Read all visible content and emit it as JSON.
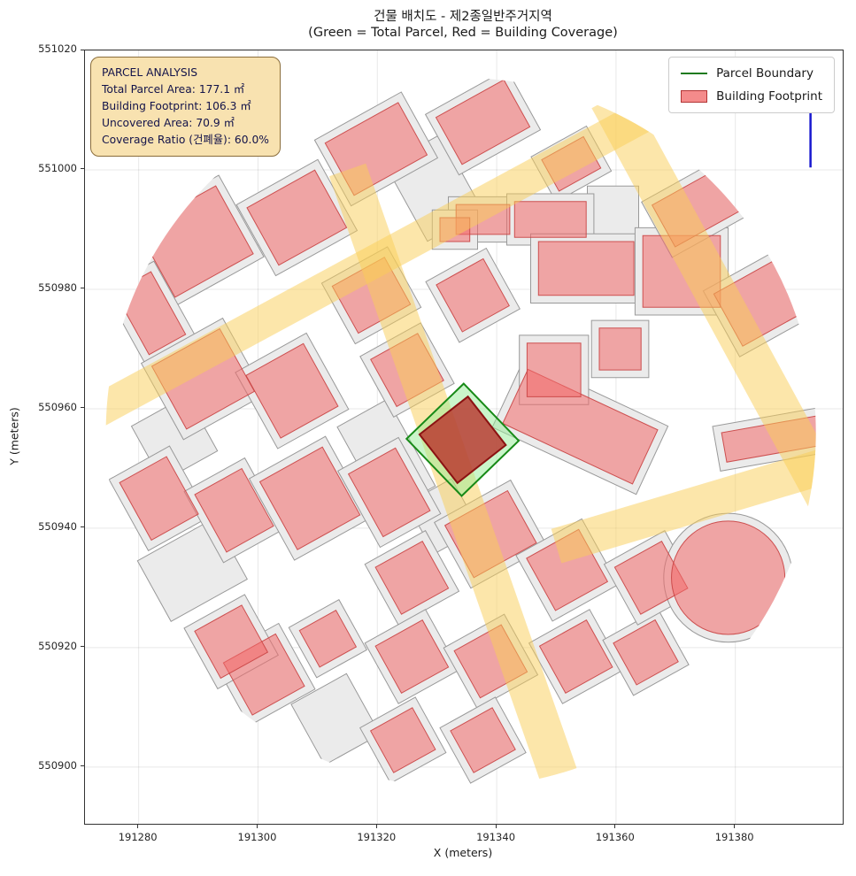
{
  "title": {
    "line1": "건물 배치도 - 제2종일반주거지역",
    "line2": "(Green = Total Parcel, Red = Building Coverage)"
  },
  "axes_labels": {
    "x": "X (meters)",
    "y": "Y (meters)"
  },
  "axes": {
    "x_ticks": [
      191280,
      191300,
      191320,
      191340,
      191360,
      191380
    ],
    "y_ticks": [
      550900,
      550920,
      550940,
      550960,
      550980,
      551000,
      551020
    ]
  },
  "info_box": {
    "lines": [
      "PARCEL ANALYSIS",
      "Total Parcel Area: 177.1 ㎡",
      "Building Footprint: 106.3 ㎡",
      "Uncovered Area: 70.9 ㎡",
      "Coverage Ratio (건폐율): 60.0%"
    ]
  },
  "legend": {
    "items": [
      {
        "label": "Parcel Boundary",
        "swatch": "green-line"
      },
      {
        "label": "Building Footprint",
        "swatch": "red-patch"
      }
    ]
  },
  "colors": {
    "parcel_fill": "#ebebeb",
    "parcel_stroke": "#999999",
    "building_fill": "rgba(242,105,105,0.55)",
    "building_stroke": "rgba(201,66,66,0.9)",
    "road_fill": "rgba(250,205,85,0.5)",
    "highlight_fill": "rgba(150,235,150,0.5)",
    "highlight_stroke": "#178a17",
    "footprint_fill": "rgba(185,45,40,0.78)",
    "footprint_stroke": "#8b1212",
    "marker": "#1818cf",
    "grid": "rgba(0,0,0,0.09)"
  },
  "chart_data": {
    "type": "map",
    "units": "meters",
    "x_range": [
      191271,
      191398
    ],
    "y_range": [
      550890.5,
      551020
    ],
    "clip_circle": [
      191334,
      550956,
      59.5
    ],
    "building_format": "cx,cy,w,h,angle_deg",
    "buildings": [
      [
        191289.5,
        550988.0,
        15,
        13,
        29
      ],
      [
        191306.5,
        550992.0,
        13,
        11,
        29
      ],
      [
        191281.9,
        550976.0,
        7,
        12,
        29
      ],
      [
        191290.8,
        550965.0,
        13,
        12,
        29
      ],
      [
        191305.7,
        550963.0,
        11,
        12,
        29
      ],
      [
        191283.4,
        550945.0,
        9,
        11,
        29
      ],
      [
        191296.0,
        550943.0,
        9,
        11,
        29
      ],
      [
        191319.8,
        551003.5,
        14,
        10,
        29
      ],
      [
        191337.7,
        551008.0,
        13,
        9,
        29
      ],
      [
        191352.5,
        551001.0,
        8,
        6,
        29
      ],
      [
        191319.0,
        550979.0,
        10,
        9,
        29
      ],
      [
        191325.0,
        550966.5,
        9,
        9,
        29
      ],
      [
        191308.7,
        550945.0,
        12,
        13,
        29
      ],
      [
        191322.0,
        550946.0,
        9,
        12,
        29
      ],
      [
        191301.0,
        550915.5,
        10,
        10,
        29
      ],
      [
        191311.7,
        550921.5,
        7,
        7,
        29
      ],
      [
        191336.0,
        550979.0,
        9,
        9,
        29
      ],
      [
        191354.0,
        550957.0,
        24,
        10,
        -25
      ],
      [
        191339.0,
        550939.0,
        12,
        10,
        29
      ],
      [
        191351.8,
        550933.0,
        10,
        10,
        29
      ],
      [
        191325.8,
        550931.7,
        9,
        9,
        29
      ],
      [
        191325.8,
        550918.5,
        9,
        9,
        29
      ],
      [
        191339.0,
        550917.7,
        9,
        9,
        29
      ],
      [
        191324.3,
        550904.5,
        8,
        8,
        29
      ],
      [
        191337.7,
        550904.5,
        8,
        8,
        29
      ],
      [
        191353.3,
        550918.5,
        9,
        9,
        29
      ],
      [
        191365.0,
        550919.2,
        8,
        8,
        29
      ],
      [
        191365.9,
        550931.7,
        9,
        9,
        29
      ],
      [
        191337.7,
        550991.7,
        9,
        5,
        0
      ],
      [
        191349.0,
        550991.7,
        12,
        6,
        0
      ],
      [
        191355.0,
        550983.5,
        16,
        9,
        0
      ],
      [
        191371.0,
        550983.0,
        13,
        12,
        0
      ],
      [
        191349.6,
        550966.5,
        9,
        9,
        0
      ],
      [
        191360.7,
        550970.0,
        7,
        7,
        0
      ],
      [
        191333.0,
        550990.0,
        5,
        4,
        0
      ],
      [
        191374.1,
        550994.0,
        8,
        14,
        -61
      ],
      [
        191384.5,
        550978.0,
        10,
        13,
        -61
      ],
      [
        191386.5,
        550955.0,
        5,
        17,
        -80
      ],
      [
        191295.5,
        550921.0,
        9,
        9,
        29
      ]
    ],
    "empty_parcels": [
      [
        191321.5,
        550952.0,
        7,
        14,
        29
      ],
      [
        191329.5,
        550997.0,
        8,
        12,
        29
      ],
      [
        191289.0,
        550933.0,
        12,
        9,
        29
      ],
      [
        191313.0,
        550908.0,
        8,
        9,
        29
      ],
      [
        191359.5,
        550992.5,
        6,
        7,
        0
      ],
      [
        191286.0,
        550955.0,
        8,
        8,
        29
      ],
      [
        191331.0,
        550942.0,
        6,
        7,
        29
      ]
    ],
    "building_circle": [
      191378.8,
      550931.7,
      9.5
    ],
    "road_format": "x1,y1,x2,y2,width_m",
    "roads": [
      [
        191272,
        550959,
        191372,
        551013,
        5.5
      ],
      [
        191315,
        551000,
        191352,
        550894,
        6.5
      ],
      [
        191359,
        551012,
        191396,
        550944,
        7
      ],
      [
        191350,
        550937,
        191397,
        550951,
        6
      ]
    ],
    "highlight_parcel": {
      "cx": 191334.3,
      "cy": 550954.8,
      "side": 13.3,
      "angle": 44,
      "area_sqm": 177.1
    },
    "building_footprint": {
      "cx": 191334.3,
      "cy": 550954.8,
      "side": 10.3,
      "angle": 38,
      "area_sqm": 106.3
    },
    "uncovered_area_sqm": 70.9,
    "coverage_ratio_pct": 60.0,
    "marker_line": {
      "x": 191392.6,
      "y1": 551000.4,
      "y2": 551018.2
    }
  }
}
